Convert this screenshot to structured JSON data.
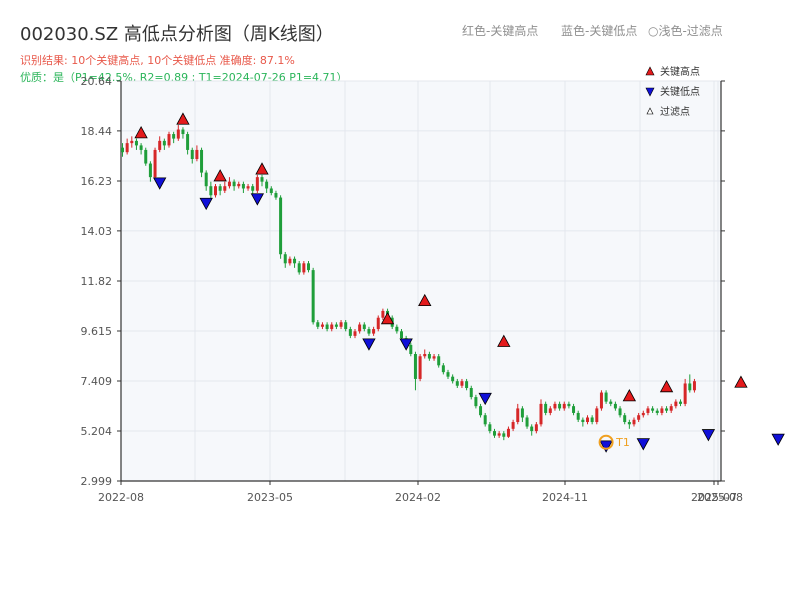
{
  "header": {
    "title": "002030.SZ 高低点分析图（周K线图）",
    "summary": "识别结果: 10个关键高点, 10个关键低点   准确度: 87.1%",
    "quality": "优质：是（P1=42.5%, R2=0.89 ; T1=2024-07-26 P1=4.71）",
    "legend_red": "红色-关键高点",
    "legend_blue": "蓝色-关键低点",
    "legend_light": "○浅色-过滤点"
  },
  "colors": {
    "up": "#d62728",
    "down": "#1f9e3a",
    "high_marker": "#e31a1c",
    "low_marker": "#1010d8",
    "t1": "#f0a020",
    "summary": "#e8584a",
    "quality": "#2bb55a",
    "plot_bg": "#f6f8fb"
  },
  "chart_data": {
    "type": "candlestick",
    "ylim": [
      2.999,
      20.64
    ],
    "y_ticks": [
      2.999,
      5.204,
      7.409,
      9.615,
      11.82,
      14.03,
      16.23,
      18.44,
      20.64
    ],
    "y_tick_labels": [
      "2.999",
      "5.204",
      "7.409",
      "9.615",
      "11.82",
      "14.03",
      "16.23",
      "18.44",
      "20.64"
    ],
    "x_tick_labels": [
      "2022-08",
      "2023-05",
      "2024-02",
      "2024-11",
      "2025-07",
      "2025-08"
    ],
    "legend": {
      "high": "关键高点",
      "low": "关键低点",
      "filtered": "过滤点",
      "position": "top-right"
    },
    "t1_label": "T1",
    "t1": {
      "date": "2024-07-26",
      "price": 4.71
    },
    "high_points": [
      {
        "date": "2022-08-26",
        "price": 18.0
      },
      {
        "date": "2022-10-28",
        "price": 18.6
      },
      {
        "date": "2022-12-23",
        "price": 16.1
      },
      {
        "date": "2023-02-24",
        "price": 16.4
      },
      {
        "date": "2023-09-01",
        "price": 9.8
      },
      {
        "date": "2023-10-27",
        "price": 10.6
      },
      {
        "date": "2024-02-23",
        "price": 8.8
      },
      {
        "date": "2024-08-30",
        "price": 6.4
      },
      {
        "date": "2024-10-25",
        "price": 6.8
      },
      {
        "date": "2025-02-14",
        "price": 7.0
      }
    ],
    "low_points": [
      {
        "date": "2022-09-23",
        "price": 16.5
      },
      {
        "date": "2022-12-02",
        "price": 15.6
      },
      {
        "date": "2023-02-17",
        "price": 15.8
      },
      {
        "date": "2023-08-04",
        "price": 9.4
      },
      {
        "date": "2023-09-29",
        "price": 9.4
      },
      {
        "date": "2024-01-26",
        "price": 7.0
      },
      {
        "date": "2024-07-26",
        "price": 4.9
      },
      {
        "date": "2024-09-20",
        "price": 5.0
      },
      {
        "date": "2024-12-27",
        "price": 5.4
      },
      {
        "date": "2025-04-11",
        "price": 5.2
      }
    ],
    "candles_ohlc": [
      [
        17.7,
        17.5,
        17.9,
        17.3
      ],
      [
        17.5,
        17.9,
        18.1,
        17.4
      ],
      [
        17.9,
        18.0,
        18.2,
        17.7
      ],
      [
        18.0,
        17.8,
        18.1,
        17.6
      ],
      [
        17.8,
        17.6,
        17.9,
        17.4
      ],
      [
        17.6,
        17.0,
        17.7,
        16.9
      ],
      [
        17.0,
        16.4,
        17.1,
        16.2
      ],
      [
        16.4,
        17.6,
        17.7,
        16.3
      ],
      [
        17.6,
        18.0,
        18.2,
        17.5
      ],
      [
        18.0,
        17.8,
        18.1,
        17.6
      ],
      [
        17.8,
        18.3,
        18.4,
        17.7
      ],
      [
        18.3,
        18.1,
        18.4,
        17.9
      ],
      [
        18.1,
        18.5,
        18.7,
        18.0
      ],
      [
        18.5,
        18.3,
        18.6,
        18.1
      ],
      [
        18.3,
        17.6,
        18.4,
        17.4
      ],
      [
        17.6,
        17.2,
        17.7,
        17.0
      ],
      [
        17.2,
        17.6,
        17.8,
        17.1
      ],
      [
        17.6,
        16.6,
        17.7,
        16.4
      ],
      [
        16.6,
        16.0,
        16.7,
        15.8
      ],
      [
        16.0,
        15.6,
        16.2,
        15.4
      ],
      [
        15.6,
        16.0,
        16.1,
        15.5
      ],
      [
        16.0,
        15.8,
        16.1,
        15.6
      ],
      [
        15.8,
        16.0,
        16.2,
        15.7
      ],
      [
        16.0,
        16.2,
        16.4,
        15.9
      ],
      [
        16.2,
        16.0,
        16.3,
        15.8
      ],
      [
        16.0,
        16.1,
        16.2,
        15.9
      ],
      [
        16.1,
        15.9,
        16.2,
        15.7
      ],
      [
        15.9,
        16.0,
        16.1,
        15.8
      ],
      [
        16.0,
        15.8,
        16.1,
        15.6
      ],
      [
        15.8,
        16.4,
        16.5,
        15.7
      ],
      [
        16.4,
        16.2,
        16.5,
        16.0
      ],
      [
        16.2,
        15.9,
        16.3,
        15.7
      ],
      [
        15.9,
        15.7,
        16.0,
        15.6
      ],
      [
        15.7,
        15.5,
        15.8,
        15.4
      ],
      [
        15.5,
        13.0,
        15.6,
        12.8
      ],
      [
        13.0,
        12.6,
        13.1,
        12.4
      ],
      [
        12.6,
        12.8,
        12.9,
        12.5
      ],
      [
        12.8,
        12.6,
        12.9,
        12.4
      ],
      [
        12.6,
        12.2,
        12.7,
        12.1
      ],
      [
        12.2,
        12.6,
        12.7,
        12.1
      ],
      [
        12.6,
        12.3,
        12.7,
        12.2
      ],
      [
        12.3,
        10.0,
        12.4,
        9.9
      ],
      [
        10.0,
        9.8,
        10.1,
        9.7
      ],
      [
        9.8,
        9.9,
        10.0,
        9.7
      ],
      [
        9.9,
        9.7,
        10.0,
        9.6
      ],
      [
        9.7,
        9.9,
        10.0,
        9.6
      ],
      [
        9.9,
        9.8,
        10.0,
        9.7
      ],
      [
        9.8,
        10.0,
        10.1,
        9.7
      ],
      [
        10.0,
        9.7,
        10.1,
        9.6
      ],
      [
        9.7,
        9.4,
        9.8,
        9.3
      ],
      [
        9.4,
        9.6,
        9.7,
        9.3
      ],
      [
        9.6,
        9.9,
        10.0,
        9.5
      ],
      [
        9.9,
        9.7,
        10.0,
        9.6
      ],
      [
        9.7,
        9.5,
        9.8,
        9.4
      ],
      [
        9.5,
        9.7,
        9.8,
        9.4
      ],
      [
        9.7,
        10.2,
        10.3,
        9.6
      ],
      [
        10.2,
        10.5,
        10.6,
        10.1
      ],
      [
        10.5,
        10.2,
        10.6,
        10.0
      ],
      [
        10.2,
        9.8,
        10.3,
        9.7
      ],
      [
        9.8,
        9.6,
        9.9,
        9.5
      ],
      [
        9.6,
        9.3,
        9.7,
        9.2
      ],
      [
        9.3,
        9.0,
        9.4,
        8.9
      ],
      [
        9.0,
        8.6,
        9.1,
        8.5
      ],
      [
        8.6,
        7.5,
        8.7,
        7.0
      ],
      [
        7.5,
        8.5,
        8.6,
        7.4
      ],
      [
        8.5,
        8.6,
        8.8,
        8.4
      ],
      [
        8.6,
        8.4,
        8.7,
        8.3
      ],
      [
        8.4,
        8.5,
        8.6,
        8.3
      ],
      [
        8.5,
        8.1,
        8.6,
        8.0
      ],
      [
        8.1,
        7.8,
        8.2,
        7.7
      ],
      [
        7.8,
        7.6,
        7.9,
        7.5
      ],
      [
        7.6,
        7.4,
        7.7,
        7.3
      ],
      [
        7.4,
        7.2,
        7.5,
        7.1
      ],
      [
        7.2,
        7.4,
        7.5,
        7.1
      ],
      [
        7.4,
        7.1,
        7.5,
        7.0
      ],
      [
        7.1,
        6.7,
        7.2,
        6.6
      ],
      [
        6.7,
        6.3,
        6.8,
        6.2
      ],
      [
        6.3,
        5.9,
        6.4,
        5.8
      ],
      [
        5.9,
        5.5,
        6.0,
        5.4
      ],
      [
        5.5,
        5.2,
        5.6,
        5.1
      ],
      [
        5.2,
        5.0,
        5.3,
        4.9
      ],
      [
        5.0,
        5.1,
        5.2,
        4.9
      ],
      [
        5.1,
        4.95,
        5.2,
        4.8
      ],
      [
        4.95,
        5.3,
        5.4,
        4.9
      ],
      [
        5.3,
        5.6,
        5.7,
        5.2
      ],
      [
        5.6,
        6.2,
        6.4,
        5.5
      ],
      [
        6.2,
        5.8,
        6.3,
        5.6
      ],
      [
        5.8,
        5.4,
        5.9,
        5.3
      ],
      [
        5.4,
        5.2,
        5.5,
        5.0
      ],
      [
        5.2,
        5.5,
        5.6,
        5.1
      ],
      [
        5.5,
        6.4,
        6.6,
        5.4
      ],
      [
        6.4,
        6.0,
        6.5,
        5.9
      ],
      [
        6.0,
        6.2,
        6.3,
        5.9
      ],
      [
        6.2,
        6.4,
        6.5,
        6.1
      ],
      [
        6.4,
        6.2,
        6.5,
        6.1
      ],
      [
        6.2,
        6.4,
        6.5,
        6.1
      ],
      [
        6.4,
        6.3,
        6.5,
        6.2
      ],
      [
        6.3,
        6.0,
        6.4,
        5.9
      ],
      [
        6.0,
        5.7,
        6.1,
        5.6
      ],
      [
        5.7,
        5.6,
        5.8,
        5.4
      ],
      [
        5.6,
        5.8,
        5.9,
        5.5
      ],
      [
        5.8,
        5.6,
        5.9,
        5.5
      ],
      [
        5.6,
        6.2,
        6.3,
        5.5
      ],
      [
        6.2,
        6.9,
        7.0,
        6.1
      ],
      [
        6.9,
        6.5,
        7.0,
        6.4
      ],
      [
        6.5,
        6.4,
        6.6,
        6.3
      ],
      [
        6.4,
        6.2,
        6.5,
        6.1
      ],
      [
        6.2,
        5.9,
        6.3,
        5.8
      ],
      [
        5.9,
        5.6,
        6.0,
        5.5
      ],
      [
        5.6,
        5.5,
        5.7,
        5.3
      ],
      [
        5.5,
        5.7,
        5.8,
        5.4
      ],
      [
        5.7,
        5.9,
        6.0,
        5.6
      ],
      [
        5.9,
        6.0,
        6.1,
        5.8
      ],
      [
        6.0,
        6.2,
        6.3,
        5.9
      ],
      [
        6.2,
        6.1,
        6.3,
        6.0
      ],
      [
        6.1,
        6.0,
        6.2,
        5.9
      ],
      [
        6.0,
        6.2,
        6.3,
        5.9
      ],
      [
        6.2,
        6.1,
        6.3,
        6.0
      ],
      [
        6.1,
        6.3,
        6.4,
        6.0
      ],
      [
        6.3,
        6.5,
        6.6,
        6.2
      ],
      [
        6.5,
        6.4,
        6.6,
        6.3
      ],
      [
        6.4,
        7.3,
        7.5,
        6.3
      ],
      [
        7.3,
        7.0,
        7.7,
        6.9
      ],
      [
        7.0,
        7.4,
        7.5,
        6.9
      ]
    ]
  }
}
